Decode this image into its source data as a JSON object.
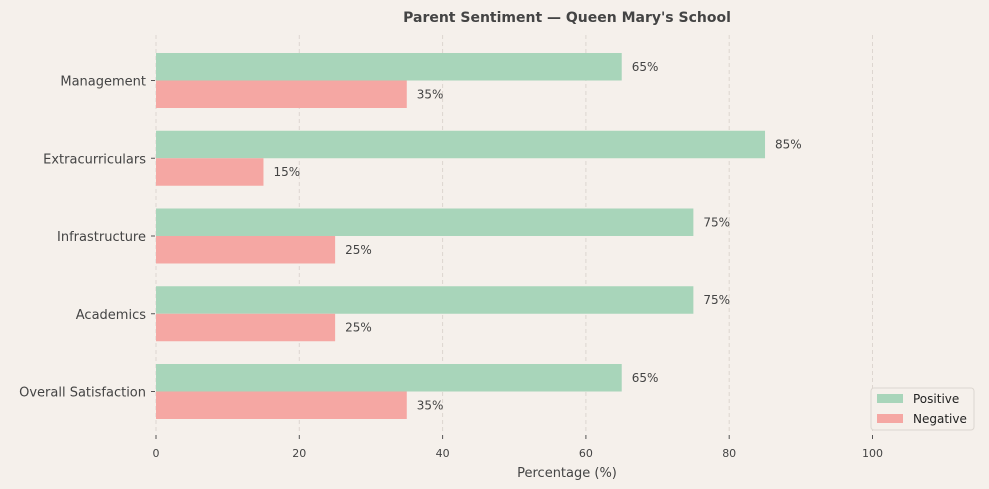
{
  "chart_data": {
    "type": "bar",
    "orientation": "horizontal",
    "title": "Parent Sentiment — Queen Mary's School",
    "xlabel": "Percentage (%)",
    "ylabel": "",
    "xlim": [
      0,
      115
    ],
    "xticks": [
      0,
      20,
      40,
      60,
      80,
      100
    ],
    "grid": "x-dashed",
    "legend_position": "bottom-right",
    "categories": [
      "Management",
      "Extracurriculars",
      "Infrastructure",
      "Academics",
      "Overall Satisfaction"
    ],
    "series": [
      {
        "name": "Positive",
        "color": "#a8d5ba",
        "values": [
          65,
          85,
          75,
          75,
          65
        ],
        "labels": [
          "65%",
          "85%",
          "75%",
          "75%",
          "65%"
        ]
      },
      {
        "name": "Negative",
        "color": "#f5a7a3",
        "values": [
          35,
          15,
          25,
          25,
          35
        ],
        "labels": [
          "35%",
          "15%",
          "25%",
          "25%",
          "35%"
        ]
      }
    ]
  }
}
